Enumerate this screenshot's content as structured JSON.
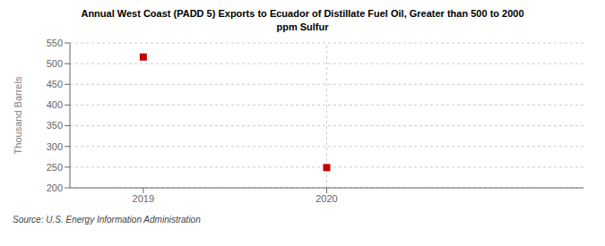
{
  "chart_data": {
    "type": "scatter",
    "title": "Annual West Coast (PADD 5) Exports to Ecuador of Distillate Fuel Oil, Greater than 500 to 2000\nppm Sulfur",
    "ylabel": "Thousand Barrels",
    "source": "Source: U.S. Energy Information Administration",
    "x": [
      2019,
      2020
    ],
    "values": [
      516,
      249
    ],
    "xlim": [
      2018.6,
      2021.4
    ],
    "xticks": [
      2019,
      2020
    ],
    "ylim": [
      200,
      550
    ],
    "yticks": [
      200,
      250,
      300,
      350,
      400,
      450,
      500,
      550
    ],
    "color": "#c00000",
    "marker": "square",
    "grid": true,
    "vline": 2020
  }
}
